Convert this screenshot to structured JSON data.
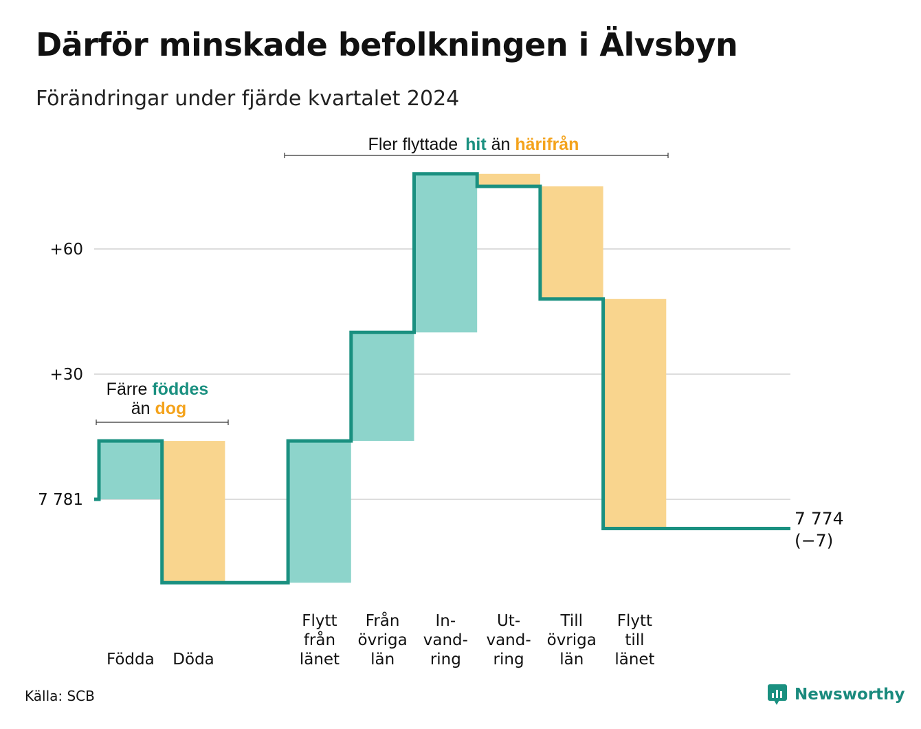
{
  "title": "Därför minskade befolkningen i Älvsbyn",
  "subtitle": "Förändringar under fjärde kvartalet 2024",
  "source": "Källa: SCB",
  "brand": "Newsworthy",
  "colors": {
    "increase_fill": "#8dd4cb",
    "decrease_fill": "#f9d58e",
    "line": "#1a9080",
    "grid": "#dddddd",
    "hl_teal": "#1a9080",
    "hl_orange": "#f4a31c"
  },
  "annotations": {
    "births_line1": {
      "pre": "Färre ",
      "hl": "föddes"
    },
    "births_line2": {
      "pre": "än ",
      "hl": "dog"
    },
    "migration": {
      "pre": "Fler flyttade ",
      "hl1": "hit",
      "mid": " än ",
      "hl2": "härifrån"
    }
  },
  "end_label": {
    "value": "7 774",
    "change": "(−7)"
  },
  "chart_data": {
    "type": "waterfall",
    "title": "Därför minskade befolkningen i Älvsbyn",
    "subtitle": "Förändringar under fjärde kvartalet 2024",
    "start_value": 7781,
    "end_value": 7774,
    "net_change": -7,
    "ylim": [
      -20,
      80
    ],
    "y_ticks": [
      {
        "value": 0,
        "label": "7 781"
      },
      {
        "value": 30,
        "label": "+30"
      },
      {
        "value": 60,
        "label": "+60"
      }
    ],
    "grid": true,
    "steps": [
      {
        "category": [
          "Födda"
        ],
        "change": 14,
        "kind": "increase"
      },
      {
        "category": [
          "Döda"
        ],
        "change": -34,
        "kind": "decrease"
      },
      {
        "category": [],
        "change": 0,
        "kind": "gap"
      },
      {
        "category": [
          "Flytt",
          "från",
          "länet"
        ],
        "change": 34,
        "kind": "increase"
      },
      {
        "category": [
          "Från",
          "övriga",
          "län"
        ],
        "change": 26,
        "kind": "increase"
      },
      {
        "category": [
          "In-",
          "vand-",
          "ring"
        ],
        "change": 38,
        "kind": "increase"
      },
      {
        "category": [
          "Ut-",
          "vand-",
          "ring"
        ],
        "change": -3,
        "kind": "decrease"
      },
      {
        "category": [
          "Till",
          "övriga",
          "län"
        ],
        "change": -27,
        "kind": "decrease"
      },
      {
        "category": [
          "Flytt",
          "till",
          "länet"
        ],
        "change": -55,
        "kind": "decrease"
      }
    ]
  }
}
